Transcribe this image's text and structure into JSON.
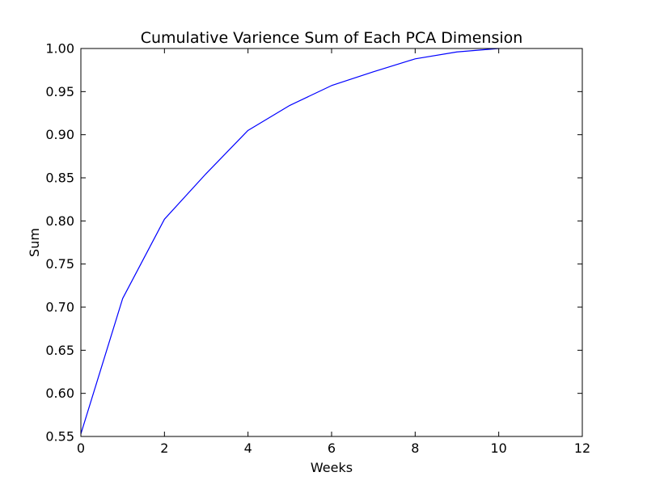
{
  "chart_data": {
    "type": "line",
    "title": "Cumulative Varience Sum of Each PCA Dimension",
    "xlabel": "Weeks",
    "ylabel": "Sum",
    "xlim": [
      0,
      12
    ],
    "ylim": [
      0.55,
      1.0
    ],
    "xticks": [
      "0",
      "2",
      "4",
      "6",
      "8",
      "10",
      "12"
    ],
    "yticks": [
      "0.55",
      "0.60",
      "0.65",
      "0.70",
      "0.75",
      "0.80",
      "0.85",
      "0.90",
      "0.95",
      "1.00"
    ],
    "grid": false,
    "legend": "none",
    "series": [
      {
        "color": "#0000ff",
        "x": [
          0,
          1,
          2,
          3,
          4,
          5,
          6,
          7,
          8,
          9,
          10
        ],
        "y": [
          0.553,
          0.71,
          0.802,
          0.855,
          0.905,
          0.934,
          0.957,
          0.973,
          0.988,
          0.996,
          1.0
        ]
      }
    ]
  }
}
